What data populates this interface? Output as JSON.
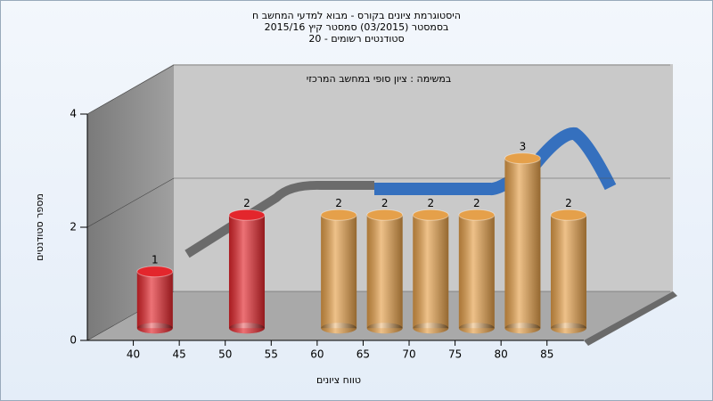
{
  "chart_data": {
    "type": "bar",
    "title": [
      "היסטוגרמת ציונים בקורס - מבוא למדעי המחשב ח",
      "בסמסטר  (03/2015)  סמסטר קיץ  2015/16",
      "סטודנטים רשומים - 20"
    ],
    "annotation": "במשימה : ציון סופי במחשב המרכזי",
    "x_label": "טווח ציונים",
    "y_label": "מספר סטודנטים",
    "x": [
      40,
      50,
      60,
      65,
      70,
      75,
      80,
      85
    ],
    "values": [
      1,
      2,
      2,
      2,
      2,
      2,
      3,
      2
    ],
    "colors": [
      "#e3262c",
      "#e3262c",
      "#e5a04a",
      "#e5a04a",
      "#e5a04a",
      "#e5a04a",
      "#e5a04a",
      "#e5a04a"
    ],
    "xlim": [
      35,
      89
    ],
    "xticks": [
      40,
      45,
      50,
      55,
      60,
      65,
      70,
      75,
      80,
      85
    ],
    "ylim": [
      0,
      4
    ],
    "yticks": [
      0,
      2,
      4
    ],
    "grid": true
  }
}
